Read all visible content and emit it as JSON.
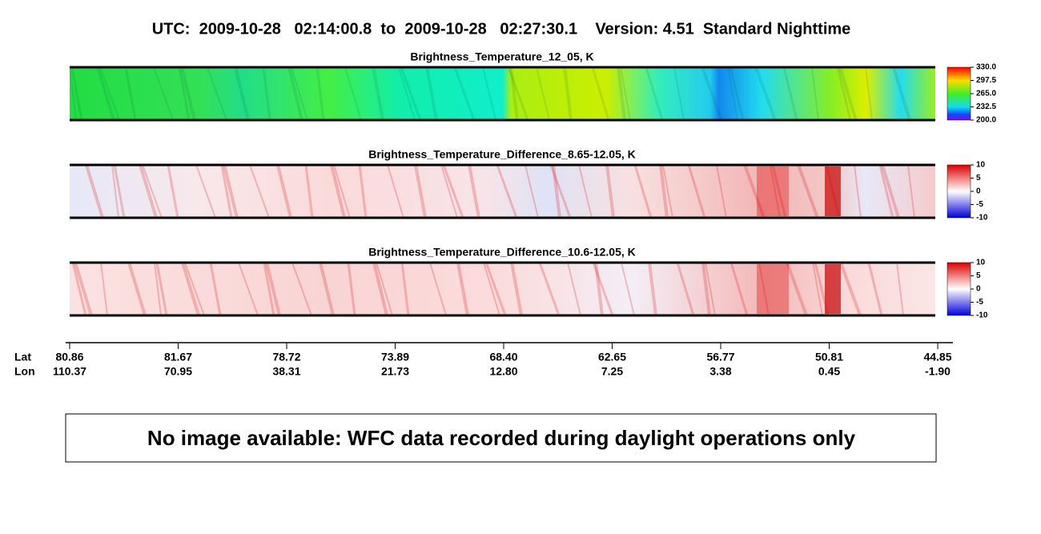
{
  "header": {
    "title": "UTC:  2009-10-28   02:14:00.8  to  2009-10-28   02:27:30.1    Version: 4.51  Standard Nighttime"
  },
  "panels": [
    {
      "title": "Brightness_Temperature_12_05, K",
      "colorbar_ticks": [
        "330.0",
        "297.5",
        "265.0",
        "232.5",
        "200.0"
      ]
    },
    {
      "title": "Brightness_Temperature_Difference_8.65-12.05, K",
      "colorbar_ticks": [
        "10",
        "5",
        "0",
        "-5",
        "-10"
      ]
    },
    {
      "title": "Brightness_Temperature_Difference_10.6-12.05, K",
      "colorbar_ticks": [
        "10",
        "5",
        "0",
        "-5",
        "-10"
      ]
    }
  ],
  "axis": {
    "row_labels": [
      "Lat",
      "Lon"
    ],
    "ticks": [
      {
        "lat": "80.86",
        "lon": "110.37"
      },
      {
        "lat": "81.67",
        "lon": "70.95"
      },
      {
        "lat": "78.72",
        "lon": "38.31"
      },
      {
        "lat": "73.89",
        "lon": "21.73"
      },
      {
        "lat": "68.40",
        "lon": "12.80"
      },
      {
        "lat": "62.65",
        "lon": "7.25"
      },
      {
        "lat": "56.77",
        "lon": "3.38"
      },
      {
        "lat": "50.81",
        "lon": "0.45"
      },
      {
        "lat": "44.85",
        "lon": "-1.90"
      }
    ]
  },
  "message": "No image available: WFC data recorded during daylight operations only"
}
